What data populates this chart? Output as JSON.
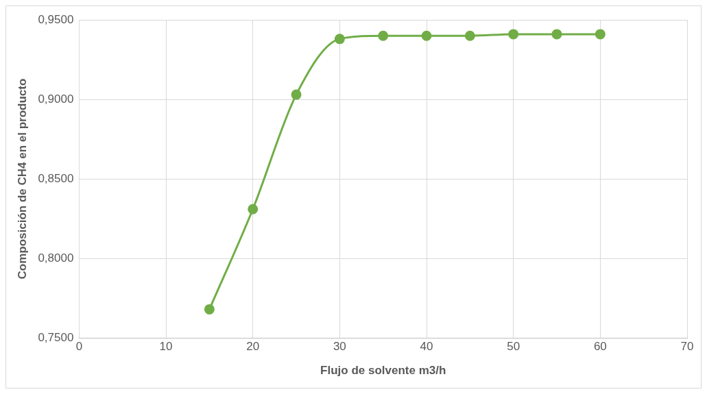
{
  "chart_data": {
    "type": "line",
    "xlabel": "Flujo de solvente m3/h",
    "ylabel": "Composición de CH4 en el producto",
    "x": [
      15,
      20,
      25,
      30,
      35,
      40,
      45,
      50,
      55,
      60
    ],
    "series": [
      {
        "color": "#70ad47",
        "values": [
          0.768,
          0.831,
          0.903,
          0.938,
          0.94,
          0.94,
          0.94,
          0.941,
          0.941,
          0.941
        ]
      }
    ],
    "xlim": [
      0,
      70
    ],
    "xticks": [
      0,
      10,
      20,
      30,
      40,
      50,
      60,
      70
    ],
    "ylim": [
      0.75,
      0.95
    ],
    "yticks": [
      {
        "value": 0.75,
        "label": "0,7500"
      },
      {
        "value": 0.8,
        "label": "0,8000"
      },
      {
        "value": 0.85,
        "label": "0,8500"
      },
      {
        "value": 0.9,
        "label": "0,9000"
      },
      {
        "value": 0.95,
        "label": "0,9500"
      }
    ],
    "grid": true,
    "marker": "circle",
    "line_style": "solid",
    "legend": false
  }
}
